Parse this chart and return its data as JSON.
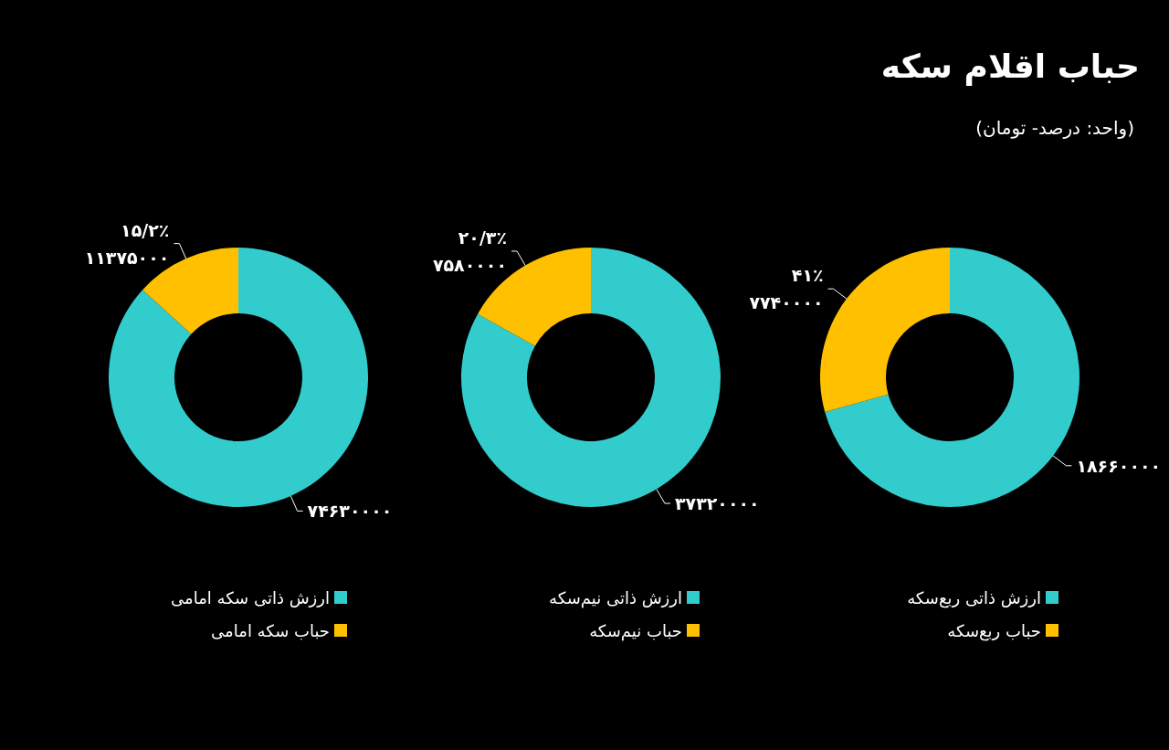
{
  "chart_data": [
    {
      "type": "donut",
      "title": "حباب اقلام سکه",
      "subtitle": "(واحد: درصد- تومان)",
      "categories": [
        "ارزش ذاتی ربع‌سکه",
        "حباب ربع‌سکه"
      ],
      "values": [
        18660000,
        7740000
      ],
      "colors": [
        "#33cccc",
        "#ffc000"
      ],
      "value_labels": [
        "۱۸۶۶۰۰۰۰",
        "۴۱٪\n۷۷۴۰۰۰۰"
      ],
      "legend": "bottom"
    },
    {
      "type": "donut",
      "categories": [
        "ارزش ذاتی نیم‌سکه",
        "حباب نیم‌سکه"
      ],
      "values": [
        37320000,
        7580000
      ],
      "colors": [
        "#33cccc",
        "#ffc000"
      ],
      "value_labels": [
        "۳۷۳۲۰۰۰۰",
        "۲۰/۳٪\n۷۵۸۰۰۰۰"
      ],
      "legend": "bottom"
    },
    {
      "type": "donut",
      "categories": [
        "ارزش ذاتی سکه امامی",
        "حباب سکه امامی"
      ],
      "values": [
        74630000,
        11375000
      ],
      "colors": [
        "#33cccc",
        "#ffc000"
      ],
      "value_labels": [
        "۷۴۶۳۰۰۰۰",
        "۱۵/۲٪\n۱۱۳۷۵۰۰۰"
      ],
      "legend": "bottom"
    }
  ]
}
